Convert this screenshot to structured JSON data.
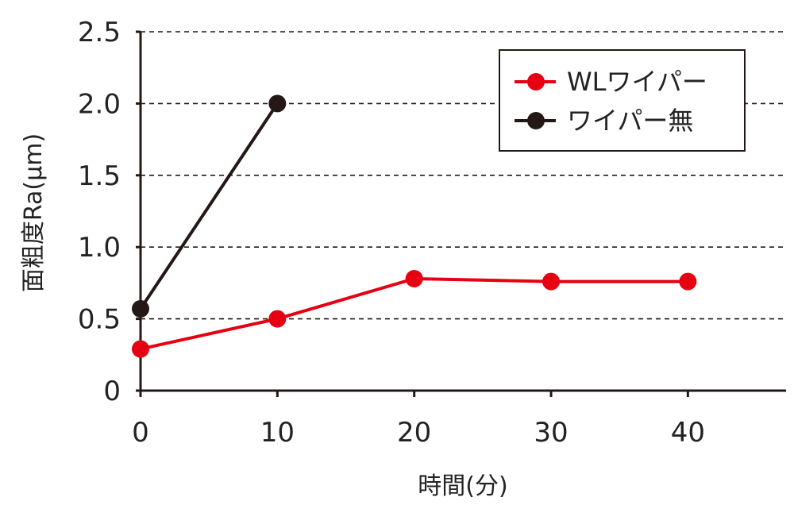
{
  "chart_data": {
    "type": "line",
    "xlabel": "時間(分)",
    "ylabel": "面粗度Ra(μm)",
    "x_ticks": [
      "0",
      "10",
      "20",
      "30",
      "40"
    ],
    "y_ticks": [
      "0",
      "0.5",
      "1.0",
      "1.5",
      "2.0",
      "2.5"
    ],
    "xlim": [
      0,
      47
    ],
    "ylim": [
      0,
      2.5
    ],
    "grid": "horizontal dashed",
    "legend_position": "top-right",
    "series": [
      {
        "name": "WLワイパー",
        "color": "#e60012",
        "points": [
          [
            0,
            0.29
          ],
          [
            10,
            0.5
          ],
          [
            20,
            0.78
          ],
          [
            30,
            0.76
          ],
          [
            40,
            0.76
          ]
        ]
      },
      {
        "name": "ワイパー無",
        "color": "#231815",
        "points": [
          [
            0,
            0.57
          ],
          [
            10,
            2.0
          ]
        ]
      }
    ]
  }
}
